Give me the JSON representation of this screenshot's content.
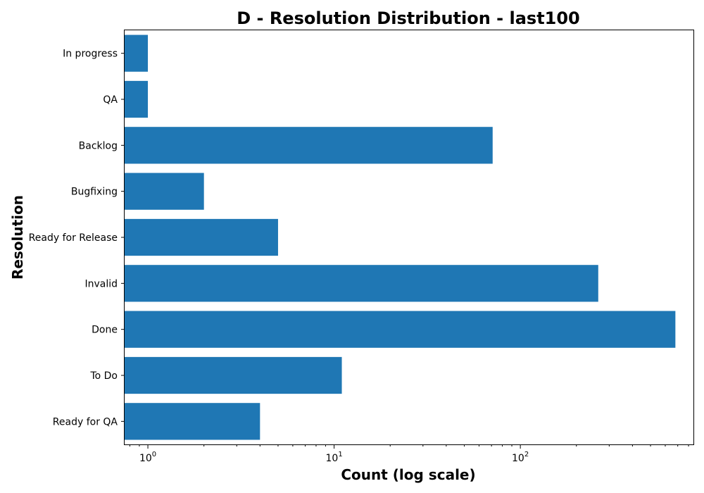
{
  "chart_data": {
    "type": "bar",
    "orientation": "horizontal",
    "title": "D - Resolution Distribution - last100",
    "xlabel": "Count (log scale)",
    "ylabel": "Resolution",
    "x_scale": "log",
    "xlim": [
      0.75,
      850
    ],
    "x_major_ticks": [
      {
        "value": 1,
        "base": "10",
        "exp": "0"
      },
      {
        "value": 10,
        "base": "10",
        "exp": "1"
      },
      {
        "value": 100,
        "base": "10",
        "exp": "2"
      }
    ],
    "categories": [
      "In progress",
      "QA",
      "Backlog",
      "Bugfixing",
      "Ready for Release",
      "Invalid",
      "Done",
      "To Do",
      "Ready for QA"
    ],
    "values": [
      1,
      1,
      71,
      2,
      5,
      262,
      680,
      11,
      4
    ],
    "bar_color": "#1f77b4",
    "grid": false,
    "legend": "none"
  }
}
